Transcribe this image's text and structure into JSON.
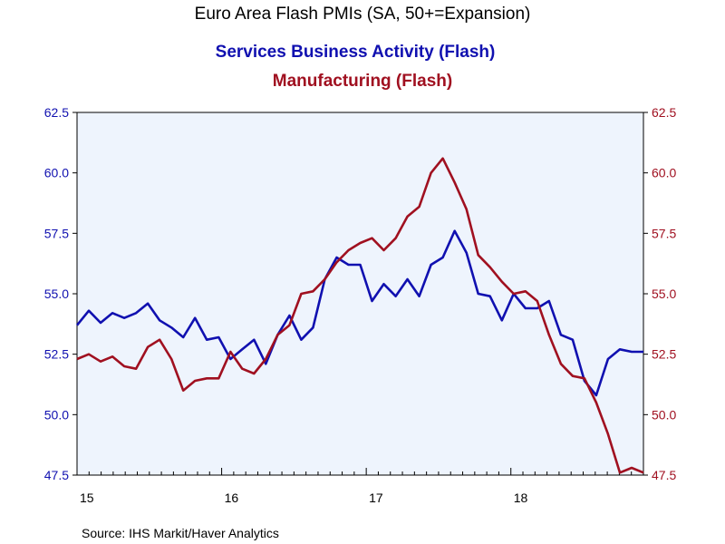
{
  "colors": {
    "services": "#1010b0",
    "manufacturing": "#a01020",
    "plot_background": "#eef4fd",
    "axis": "#000000"
  },
  "chart_data": {
    "type": "line",
    "title": "Euro Area Flash PMIs (SA, 50+=Expansion)",
    "left_axis_color_series": "services",
    "right_axis_color_series": "manufacturing",
    "ylim": [
      47.5,
      62.5
    ],
    "y_ticks": [
      "62.5",
      "60.0",
      "57.5",
      "55.0",
      "52.5",
      "50.0",
      "47.5"
    ],
    "y_tick_values": [
      62.5,
      60.0,
      57.5,
      55.0,
      52.5,
      50.0,
      47.5
    ],
    "x_range_months": [
      0,
      47
    ],
    "x_tick_labels": [
      "15",
      "16",
      "17",
      "18"
    ],
    "x_tick_label_month_index": [
      0,
      12,
      24,
      36
    ],
    "grid": false,
    "legend": "title-lines",
    "source": "Source:  IHS Markit/Haver Analytics",
    "series": [
      {
        "name": "Services Business Activity (Flash)",
        "key": "services",
        "axis": "left",
        "values": [
          53.7,
          54.3,
          53.8,
          54.2,
          54.0,
          54.2,
          54.6,
          53.9,
          53.6,
          53.2,
          54.0,
          53.1,
          53.2,
          52.3,
          52.7,
          53.1,
          52.1,
          53.3,
          54.1,
          53.1,
          53.6,
          55.6,
          56.5,
          56.2,
          56.2,
          54.7,
          55.4,
          54.9,
          55.6,
          54.9,
          56.2,
          56.5,
          57.6,
          56.7,
          55.0,
          54.9,
          53.9,
          55.0,
          54.4,
          54.4,
          54.7,
          53.3,
          53.1,
          51.4,
          50.8,
          52.3,
          52.7,
          52.6,
          52.6
        ]
      },
      {
        "name": "Manufacturing (Flash)",
        "key": "manufacturing",
        "axis": "right",
        "values": [
          52.3,
          52.5,
          52.2,
          52.4,
          52.0,
          51.9,
          52.8,
          53.1,
          52.3,
          51.0,
          51.4,
          51.5,
          51.5,
          52.6,
          51.9,
          51.7,
          52.3,
          53.3,
          53.7,
          55.0,
          55.1,
          55.6,
          56.3,
          56.8,
          57.1,
          57.3,
          56.8,
          57.3,
          58.2,
          58.6,
          60.0,
          60.6,
          59.6,
          58.5,
          56.6,
          56.1,
          55.5,
          55.0,
          55.1,
          54.7,
          53.3,
          52.1,
          51.6,
          51.5,
          50.5,
          49.2,
          47.6,
          47.8,
          47.6
        ]
      }
    ]
  }
}
